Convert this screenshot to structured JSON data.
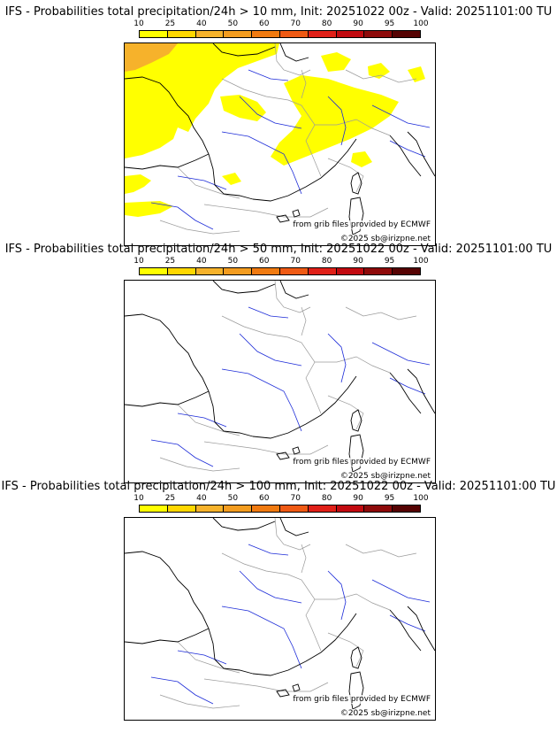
{
  "colorbar": {
    "ticks": [
      "10",
      "25",
      "40",
      "50",
      "60",
      "70",
      "80",
      "90",
      "95",
      "100"
    ],
    "colors": [
      "#ffff00",
      "#ffd700",
      "#f6b22b",
      "#f39c1f",
      "#f07a10",
      "#ef5a14",
      "#e02018",
      "#c20a10",
      "#8e0a0a",
      "#560303"
    ]
  },
  "panels": [
    {
      "title": "IFS - Probabilities total precipitation/24h > 10 mm, Init: 20251022 00z - Valid: 20251101:00 TU",
      "credit": "from grib files provided by ECMWF",
      "copyright": "©2025 sb@irizpne.net",
      "has_precip": true
    },
    {
      "title": "IFS - Probabilities total precipitation/24h > 50 mm, Init: 20251022 00z - Valid: 20251101:00 TU",
      "credit": "from grib files provided by ECMWF",
      "copyright": "©2025 sb@irizpne.net",
      "has_precip": false
    },
    {
      "title": "IFS - Probabilities total precipitation/24h > 100 mm, Init: 20251022 00z - Valid: 20251101:00 TU",
      "credit": "from grib files provided by ECMWF",
      "copyright": "©2025 sb@irizpne.net",
      "has_precip": false
    }
  ],
  "map_colors": {
    "coast": "#000000",
    "borders": "#9a9a9a",
    "rivers": "#1c2bd8",
    "precip_low": "#ffff00",
    "precip_mid": "#f6b22b"
  }
}
